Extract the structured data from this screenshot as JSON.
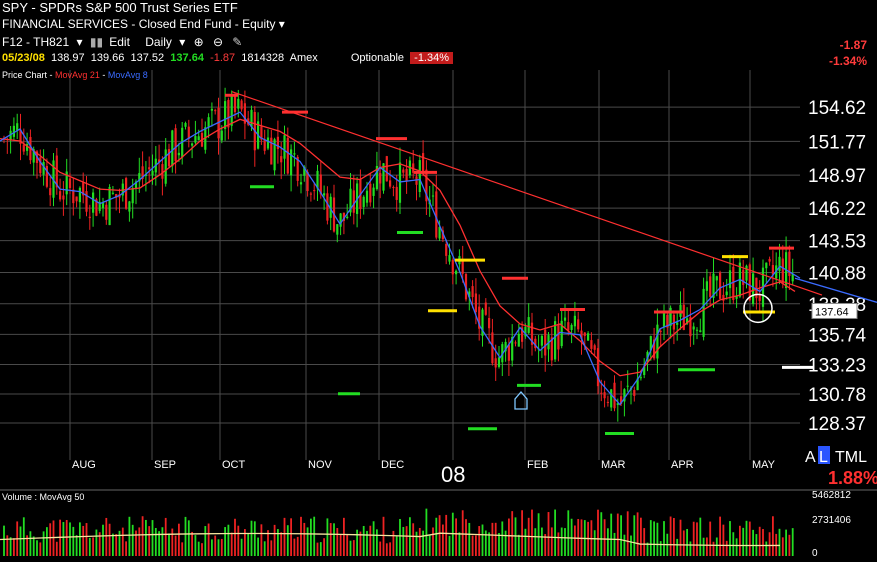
{
  "header": {
    "title": "SPY - SPDRs S&P 500 Trust Series ETF",
    "subtitle": "FINANCIAL SERVICES - Closed End Fund - Equity",
    "toolbar": {
      "keys": "F12 - TH821",
      "edit": "Edit",
      "period": "Daily",
      "icons": [
        "bar-icon",
        "zoom-in-icon",
        "zoom-out-icon",
        "pencil-icon"
      ]
    },
    "quote": {
      "date": "05/23/08",
      "open": "138.97",
      "high": "139.66",
      "low": "137.52",
      "close": "137.64",
      "change": "-1.87",
      "volume": "1814328",
      "exchange": "Amex",
      "optionable": "Optionable",
      "change_pct": "-1.34%"
    },
    "right_change": "-1.87",
    "right_change_pct": "-1.34%"
  },
  "legend": {
    "price_chart": "Price Chart",
    "ma21": "MovAvg 21",
    "ma8": "MovAvg 8",
    "volume": "Volume",
    "vol_ma": "MovAvg 50"
  },
  "footer": {
    "al": "AL",
    "tml": "TML",
    "pct": "1.88%"
  },
  "colors": {
    "up": "#22dd22",
    "down": "#ee2222",
    "ma21": "#ff3030",
    "ma8": "#3a6bff",
    "grid": "#4a4a4a",
    "resistance": "#ff3030",
    "support": "#22dd22",
    "yellow": "#ffe000"
  },
  "chart_data": {
    "type": "candlestick",
    "y_ticks": [
      154.62,
      151.77,
      148.97,
      146.22,
      143.53,
      140.88,
      138.28,
      135.74,
      133.23,
      130.78,
      128.37
    ],
    "y_range": [
      125.3,
      157.7
    ],
    "x_ticks": [
      "AUG",
      "SEP",
      "OCT",
      "NOV",
      "DEC",
      "08",
      "FEB",
      "MAR",
      "APR",
      "MAY"
    ],
    "last_price": 137.64,
    "volume_ticks": [
      "5462812",
      "2731406",
      "0"
    ],
    "volume_max": 5462812,
    "ma21_points": [
      [
        0,
        152.0
      ],
      [
        20,
        151.8
      ],
      [
        40,
        150.6
      ],
      [
        60,
        149.2
      ],
      [
        80,
        148.5
      ],
      [
        100,
        147.8
      ],
      [
        120,
        147.7
      ],
      [
        140,
        147.9
      ],
      [
        160,
        149.0
      ],
      [
        180,
        150.3
      ],
      [
        200,
        151.8
      ],
      [
        220,
        152.8
      ],
      [
        240,
        153.6
      ],
      [
        260,
        153.1
      ],
      [
        280,
        152.6
      ],
      [
        300,
        151.6
      ],
      [
        320,
        150.2
      ],
      [
        340,
        148.8
      ],
      [
        360,
        148.6
      ],
      [
        380,
        149.6
      ],
      [
        400,
        149.9
      ],
      [
        420,
        149.3
      ],
      [
        440,
        147.7
      ],
      [
        460,
        144.8
      ],
      [
        480,
        141.0
      ],
      [
        500,
        138.1
      ],
      [
        520,
        136.6
      ],
      [
        540,
        136.1
      ],
      [
        560,
        136.6
      ],
      [
        580,
        135.2
      ],
      [
        600,
        133.5
      ],
      [
        620,
        132.3
      ],
      [
        640,
        132.6
      ],
      [
        660,
        134.7
      ],
      [
        680,
        136.2
      ],
      [
        700,
        137.6
      ],
      [
        720,
        138.6
      ],
      [
        740,
        139.0
      ],
      [
        760,
        139.6
      ],
      [
        780,
        140.1
      ],
      [
        795,
        139.3
      ]
    ],
    "ma8_points": [
      [
        0,
        151.8
      ],
      [
        20,
        152.8
      ],
      [
        40,
        150.1
      ],
      [
        60,
        147.8
      ],
      [
        80,
        147.6
      ],
      [
        100,
        146.6
      ],
      [
        120,
        147.3
      ],
      [
        140,
        148.6
      ],
      [
        160,
        150.1
      ],
      [
        180,
        151.6
      ],
      [
        200,
        152.6
      ],
      [
        220,
        153.4
      ],
      [
        240,
        154.2
      ],
      [
        260,
        152.1
      ],
      [
        280,
        151.3
      ],
      [
        300,
        150.1
      ],
      [
        320,
        147.6
      ],
      [
        340,
        144.9
      ],
      [
        360,
        147.3
      ],
      [
        380,
        149.6
      ],
      [
        400,
        148.4
      ],
      [
        420,
        148.6
      ],
      [
        440,
        144.7
      ],
      [
        460,
        140.9
      ],
      [
        480,
        136.4
      ],
      [
        500,
        133.8
      ],
      [
        520,
        136.3
      ],
      [
        540,
        134.4
      ],
      [
        560,
        135.9
      ],
      [
        580,
        135.7
      ],
      [
        600,
        131.8
      ],
      [
        620,
        129.9
      ],
      [
        640,
        132.3
      ],
      [
        660,
        136.2
      ],
      [
        680,
        136.9
      ],
      [
        700,
        137.8
      ],
      [
        720,
        139.6
      ],
      [
        740,
        140.3
      ],
      [
        760,
        139.3
      ],
      [
        780,
        141.4
      ],
      [
        800,
        140.4
      ]
    ],
    "trendline": [
      [
        232,
        155.9
      ],
      [
        822,
        139.0
      ]
    ],
    "resistance_marks": [
      [
        225,
        238,
        155.6
      ],
      [
        282,
        308,
        154.2
      ],
      [
        376,
        407,
        152.0
      ],
      [
        414,
        437,
        149.2
      ],
      [
        502,
        528,
        140.4
      ],
      [
        560,
        585,
        137.8
      ],
      [
        654,
        683,
        137.6
      ],
      [
        769,
        794,
        142.9
      ]
    ],
    "support_marks": [
      [
        250,
        274,
        148.0
      ],
      [
        397,
        423,
        144.2
      ],
      [
        338,
        360,
        130.8
      ],
      [
        468,
        497,
        127.9
      ],
      [
        517,
        541,
        131.5
      ],
      [
        605,
        634,
        127.5
      ],
      [
        678,
        715,
        132.8
      ]
    ],
    "yellow_marks": [
      [
        455,
        485,
        141.9
      ],
      [
        428,
        457,
        137.7
      ],
      [
        722,
        748,
        142.2
      ],
      [
        743,
        775,
        137.6
      ]
    ],
    "white_mark": [
      [
        782,
        814,
        133.0
      ]
    ],
    "circle_mark": {
      "cx": 758,
      "price": 137.9
    }
  }
}
